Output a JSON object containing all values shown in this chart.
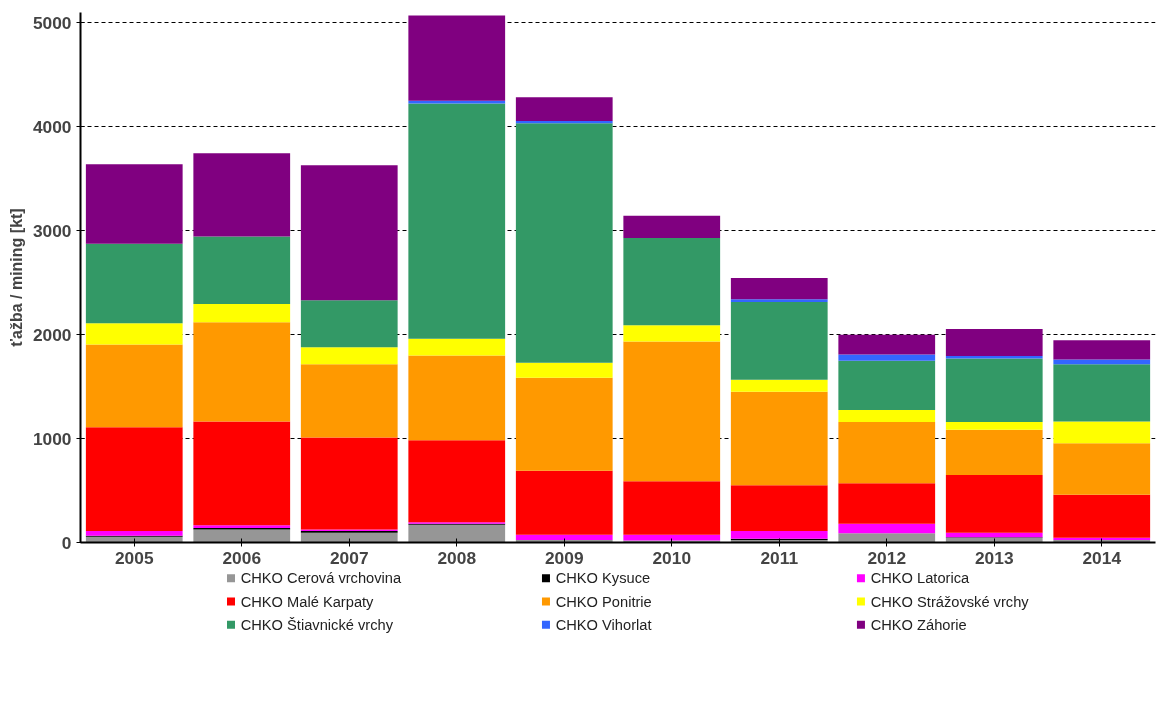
{
  "chart_data": {
    "type": "bar",
    "stacked": true,
    "ylabel": "ťažba / mining [kt]",
    "categories": [
      "2005",
      "2006",
      "2007",
      "2008",
      "2009",
      "2010",
      "2011",
      "2012",
      "2013",
      "2014"
    ],
    "series": [
      {
        "name": "CHKO Cerová vrchovina",
        "color": "#969696",
        "values": [
          55,
          125,
          95,
          170,
          25,
          20,
          25,
          90,
          45,
          25
        ]
      },
      {
        "name": "CHKO Kysuce",
        "color": "#000000",
        "values": [
          10,
          15,
          15,
          10,
          null,
          null,
          10,
          0,
          5,
          null
        ]
      },
      {
        "name": "CHKO Latorica",
        "color": "#ff00ff",
        "values": [
          45,
          25,
          15,
          15,
          50,
          55,
          75,
          90,
          45,
          20
        ]
      },
      {
        "name": "CHKO Malé Karpaty",
        "color": "#ff0000",
        "values": [
          1000,
          1000,
          885,
          790,
          615,
          515,
          440,
          390,
          555,
          415
        ]
      },
      {
        "name": "CHKO Ponitrie",
        "color": "#ff9900",
        "values": [
          795,
          955,
          705,
          815,
          895,
          1345,
          900,
          590,
          435,
          495
        ]
      },
      {
        "name": "CHKO Strážovské vrchy",
        "color": "#ffff00",
        "values": [
          205,
          175,
          165,
          160,
          145,
          155,
          115,
          115,
          75,
          210
        ]
      },
      {
        "name": "CHKO Štiavnické vrchy",
        "color": "#339966",
        "values": [
          765,
          650,
          450,
          2265,
          2305,
          840,
          750,
          475,
          610,
          550
        ]
      },
      {
        "name": "CHKO Vihorlat",
        "color": "#3366ff",
        "values": [
          0,
          0,
          0,
          25,
          20,
          0,
          25,
          60,
          25,
          45
        ]
      },
      {
        "name": "CHKO Záhorie",
        "color": "#800080",
        "values": [
          765,
          800,
          1300,
          820,
          230,
          215,
          205,
          190,
          260,
          185
        ]
      }
    ],
    "ylim": [
      0,
      5100
    ],
    "yticks": [
      0,
      1000,
      2000,
      3000,
      4000,
      5000
    ],
    "grid": "y",
    "legend": "bottom"
  }
}
